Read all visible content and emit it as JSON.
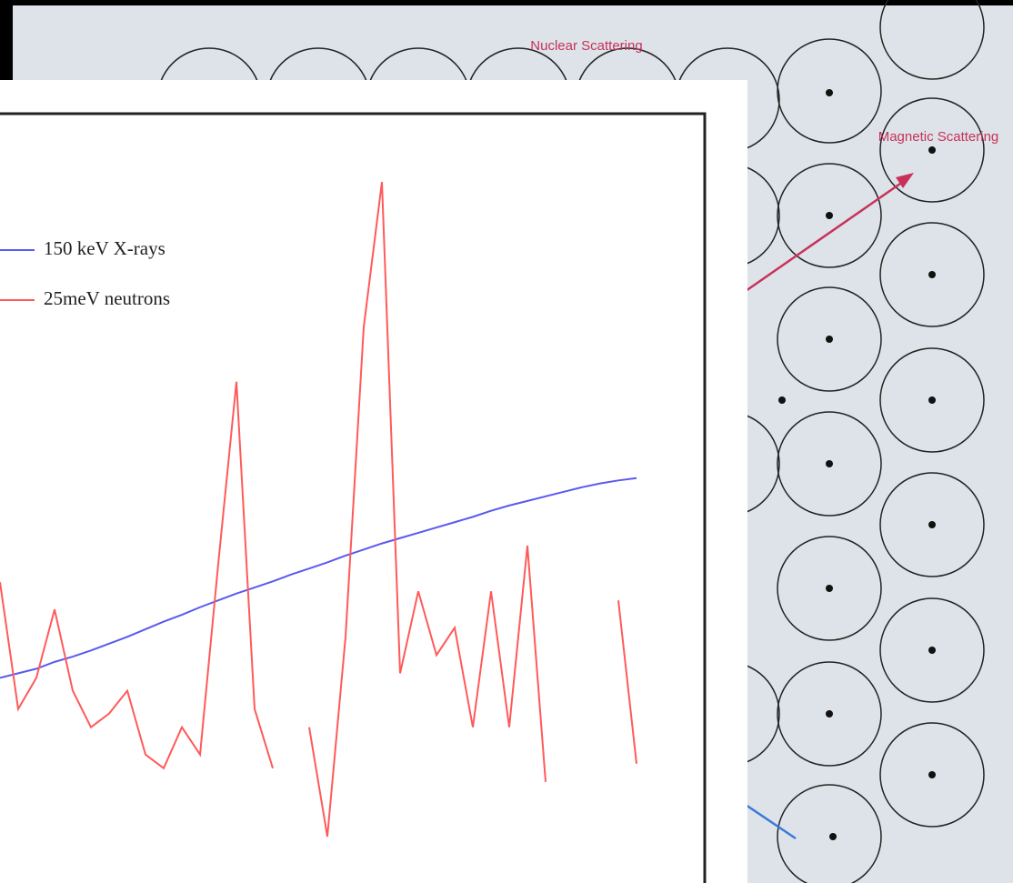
{
  "chart_data": {
    "type": "line",
    "diagram_labels": {
      "nuclear": "Nuclear Scattering",
      "magnetic": "Magnetic Scattering"
    },
    "ylim": [
      0,
      100
    ],
    "legend": "upper left",
    "series": [
      {
        "name": "150 keV X-rays",
        "color": "#5a5aee",
        "values": [
          25.7,
          26.3,
          26.9,
          27.8,
          28.5,
          29.3,
          30.2,
          31.1,
          32.1,
          33.1,
          34.0,
          35.0,
          35.9,
          36.8,
          37.6,
          38.4,
          39.3,
          40.1,
          40.9,
          41.8,
          42.6,
          43.4,
          44.1,
          44.8,
          45.5,
          46.2,
          46.9,
          47.7,
          48.4,
          49.0,
          49.6,
          50.2,
          50.8,
          51.3,
          51.7,
          52.0
        ]
      },
      {
        "name": "25meV neutrons",
        "color": "#ff5a5a",
        "values": [
          38.3,
          21.6,
          25.7,
          34.7,
          24.0,
          19.2,
          21.0,
          24.0,
          15.6,
          13.8,
          19.2,
          15.6,
          40.7,
          64.7,
          21.6,
          13.8,
          null,
          19.2,
          4.8,
          31.1,
          71.9,
          91.0,
          26.3,
          37.1,
          28.7,
          32.3,
          19.2,
          37.1,
          19.2,
          43.1,
          12.0,
          null,
          null,
          null,
          35.9,
          14.4
        ]
      }
    ]
  }
}
